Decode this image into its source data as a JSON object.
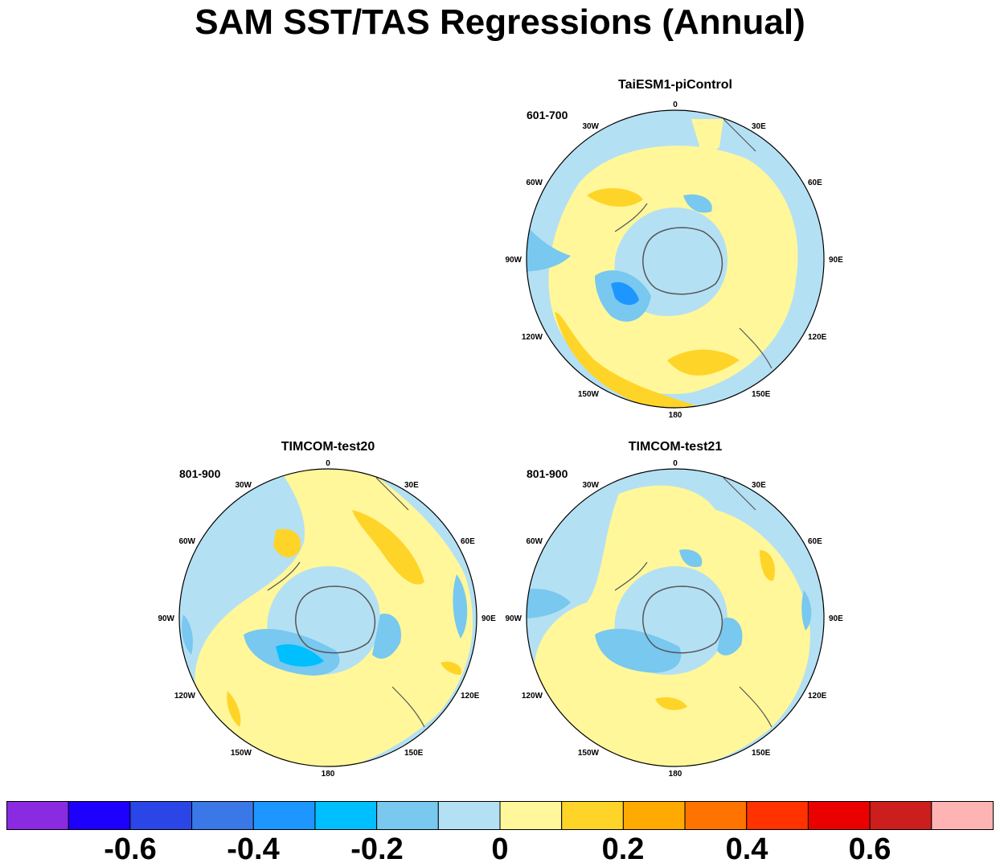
{
  "title": "SAM SST/TAS Regressions (Annual)",
  "panels": [
    {
      "id": "taiesm1",
      "title": "TaiESM1-piControl",
      "period": "601-700"
    },
    {
      "id": "test20",
      "title": "TIMCOM-test20",
      "period": "801-900"
    },
    {
      "id": "test21",
      "title": "TIMCOM-test21",
      "period": "801-900"
    }
  ],
  "longitude_labels": [
    "0",
    "30E",
    "60E",
    "90E",
    "120E",
    "150E",
    "180",
    "150W",
    "120W",
    "90W",
    "60W",
    "30W"
  ],
  "colorbar": {
    "colors": [
      "#8a2be2",
      "#1e00ff",
      "#2a46e6",
      "#3a78e8",
      "#1e96ff",
      "#00bfff",
      "#78c8f0",
      "#b4e0f4",
      "#fff79a",
      "#ffd428",
      "#ffaa00",
      "#ff7300",
      "#ff3200",
      "#eb0000",
      "#cd1e1e",
      "#ffb4b4"
    ],
    "tick_labels": [
      "-0.6",
      "-0.4",
      "-0.2",
      "0",
      "0.2",
      "0.4",
      "0.6"
    ]
  }
}
